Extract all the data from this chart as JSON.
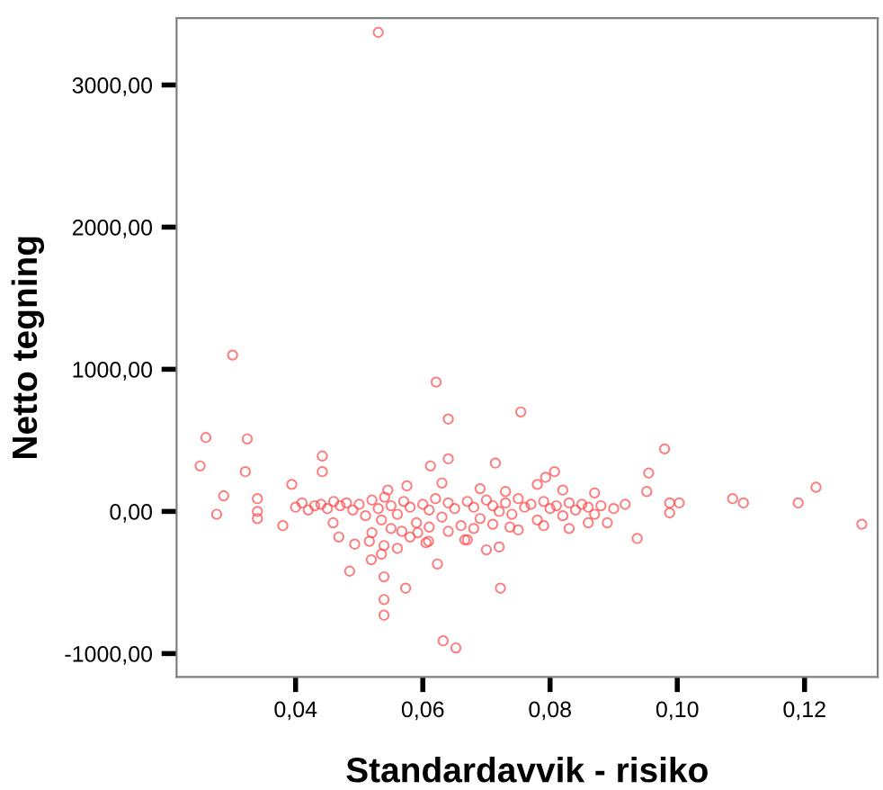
{
  "chart_data": {
    "type": "scatter",
    "xlabel": "Standardavvik - risiko",
    "ylabel": "Netto tegning",
    "xlim": [
      0.0213,
      0.1315
    ],
    "ylim": [
      -1165,
      3470
    ],
    "xticks": [
      {
        "value": 0.04,
        "label": "0,04"
      },
      {
        "value": 0.06,
        "label": "0,06"
      },
      {
        "value": 0.08,
        "label": "0,08"
      },
      {
        "value": 0.1,
        "label": "0,10"
      },
      {
        "value": 0.12,
        "label": "0,12"
      }
    ],
    "yticks": [
      {
        "value": -1000,
        "label": "-1000,00"
      },
      {
        "value": 0,
        "label": "0,00"
      },
      {
        "value": 1000,
        "label": "1000,00"
      },
      {
        "value": 2000,
        "label": "2000,00"
      },
      {
        "value": 3000,
        "label": "3000,00"
      }
    ],
    "grid": false,
    "marker": "circle",
    "series": [
      {
        "color": "#ff4d4d",
        "x": [
          0.053,
          0.0301,
          0.0259,
          0.025,
          0.0324,
          0.0321,
          0.0287,
          0.0276,
          0.034,
          0.034,
          0.034,
          0.038,
          0.0394,
          0.0442,
          0.0442,
          0.0485,
          0.0519,
          0.0539,
          0.0539,
          0.0539,
          0.0573,
          0.0621,
          0.064,
          0.064,
          0.0612,
          0.0714,
          0.0754,
          0.0623,
          0.0722,
          0.0632,
          0.0652,
          0.0493,
          0.0516,
          0.0539,
          0.0567,
          0.0592,
          0.0609,
          0.0666,
          0.07,
          0.072,
          0.0459,
          0.0468,
          0.098,
          0.129,
          0.1218,
          0.119,
          0.1087,
          0.1104,
          0.0955,
          0.0952,
          0.0937,
          0.0988,
          0.1003,
          0.0988,
          0.0918,
          0.089,
          0.0807,
          0.0793,
          0.0737,
          0.04,
          0.041,
          0.042,
          0.043,
          0.044,
          0.045,
          0.046,
          0.047,
          0.048,
          0.049,
          0.05,
          0.051,
          0.052,
          0.053,
          0.0535,
          0.054,
          0.055,
          0.056,
          0.057,
          0.058,
          0.059,
          0.06,
          0.061,
          0.062,
          0.063,
          0.064,
          0.065,
          0.066,
          0.067,
          0.068,
          0.069,
          0.07,
          0.071,
          0.072,
          0.073,
          0.074,
          0.075,
          0.076,
          0.077,
          0.078,
          0.079,
          0.08,
          0.081,
          0.082,
          0.083,
          0.084,
          0.085,
          0.086,
          0.087,
          0.088,
          0.09,
          0.052,
          0.055,
          0.058,
          0.061,
          0.064,
          0.068,
          0.071,
          0.075,
          0.079,
          0.083,
          0.086,
          0.0545,
          0.0575,
          0.063,
          0.069,
          0.073,
          0.078,
          0.082,
          0.087,
          0.0535,
          0.056,
          0.0605,
          0.067
        ],
        "values": [
          3370,
          1100,
          520,
          320,
          510,
          280,
          110,
          -20,
          90,
          0,
          -50,
          -100,
          190,
          390,
          280,
          -420,
          -340,
          -460,
          -620,
          -730,
          -540,
          910,
          650,
          370,
          320,
          340,
          700,
          -370,
          -540,
          -910,
          -960,
          -230,
          -210,
          -240,
          -140,
          -150,
          -210,
          -200,
          -270,
          -250,
          -80,
          -180,
          440,
          -90,
          170,
          60,
          90,
          60,
          270,
          140,
          -190,
          60,
          60,
          -10,
          50,
          -80,
          280,
          240,
          -110,
          30,
          60,
          10,
          40,
          50,
          20,
          70,
          40,
          60,
          10,
          50,
          -30,
          80,
          20,
          -60,
          100,
          40,
          -20,
          70,
          30,
          -80,
          50,
          10,
          90,
          -40,
          60,
          20,
          -100,
          70,
          30,
          -50,
          80,
          40,
          0,
          60,
          -20,
          90,
          30,
          50,
          -60,
          70,
          20,
          40,
          -30,
          60,
          10,
          50,
          30,
          -20,
          40,
          20,
          -150,
          -120,
          -180,
          -110,
          -140,
          -120,
          -90,
          -130,
          -100,
          -120,
          -80,
          150,
          180,
          200,
          160,
          140,
          190,
          150,
          130,
          -300,
          -260,
          -220,
          -200
        ]
      }
    ]
  }
}
